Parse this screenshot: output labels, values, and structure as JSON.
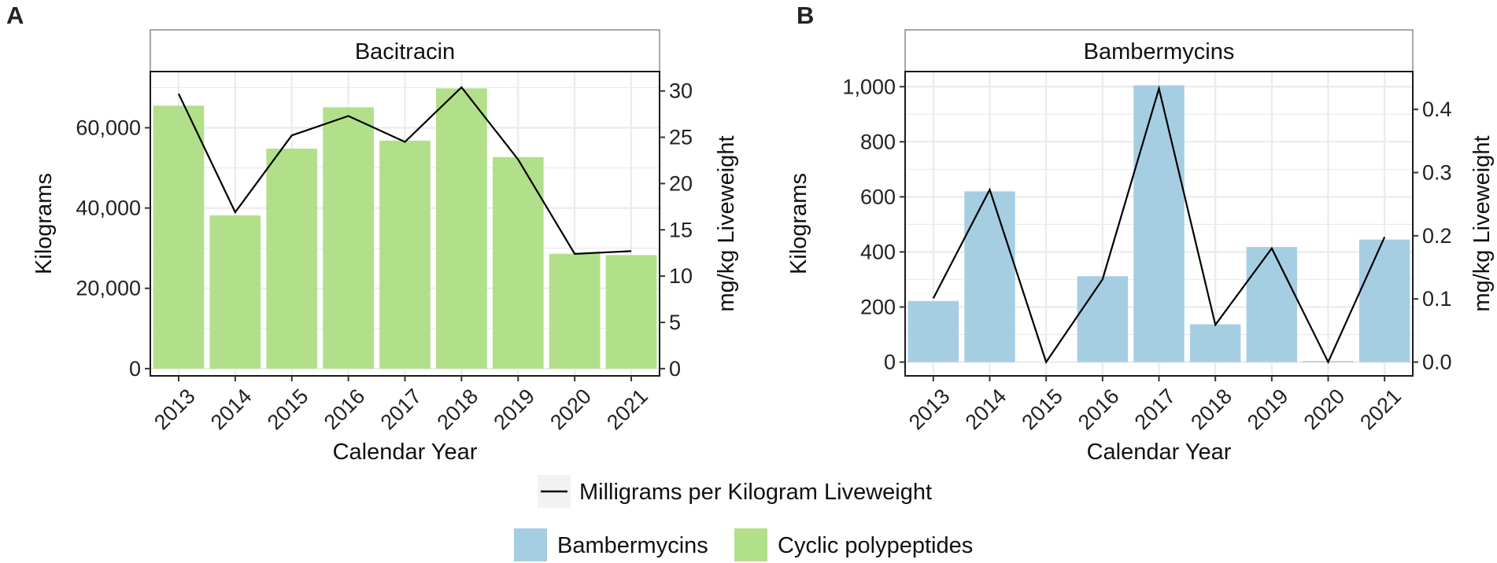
{
  "colors": {
    "cyclic": "#b2df8a",
    "bamber": "#a6cee3",
    "line": "#000000",
    "grid": "#ebebeb",
    "strip_bg": "#ffffff"
  },
  "legend": {
    "line_label": "Milligrams per Kilogram Liveweight",
    "fill_items": [
      "Bambermycins",
      "Cyclic polypeptides"
    ]
  },
  "chart_data": [
    {
      "panel": "A",
      "type": "bar",
      "title": "Bacitracin",
      "xlabel": "Calendar Year",
      "ylabel": "Kilograms",
      "ylabel_right": "mg/kg Liveweight",
      "categories": [
        "2013",
        "2014",
        "2015",
        "2016",
        "2017",
        "2018",
        "2019",
        "2020",
        "2021"
      ],
      "series": [
        {
          "name": "Cyclic polypeptides",
          "kind": "bar",
          "axis": "left",
          "values": [
            65500,
            38200,
            54800,
            65100,
            56800,
            69800,
            52700,
            28600,
            28300
          ]
        },
        {
          "name": "Milligrams per Kilogram Liveweight",
          "kind": "line",
          "axis": "right",
          "values": [
            29.7,
            16.9,
            25.2,
            27.3,
            24.5,
            30.4,
            22.6,
            12.4,
            12.7
          ]
        }
      ],
      "ylim": [
        -1800,
        74000
      ],
      "ylim_right": [
        -0.78,
        32.1
      ],
      "yticks": [
        0,
        20000,
        40000,
        60000
      ],
      "ytick_labels": [
        "0",
        "20,000",
        "40,000",
        "60,000"
      ],
      "yticks_right": [
        0,
        5,
        10,
        15,
        20,
        25,
        30
      ],
      "ytick_labels_right": [
        "0",
        "5",
        "10",
        "15",
        "20",
        "25",
        "30"
      ],
      "grid": true
    },
    {
      "panel": "B",
      "type": "bar",
      "title": "Bambermycins",
      "xlabel": "Calendar Year",
      "ylabel": "Kilograms",
      "ylabel_right": "mg/kg Liveweight",
      "categories": [
        "2013",
        "2014",
        "2015",
        "2016",
        "2017",
        "2018",
        "2019",
        "2020",
        "2021"
      ],
      "series": [
        {
          "name": "Bambermycins",
          "kind": "bar",
          "axis": "left",
          "values": [
            222,
            620,
            0,
            312,
            1005,
            137,
            418,
            4,
            445
          ]
        },
        {
          "name": "Milligrams per Kilogram Liveweight",
          "kind": "line",
          "axis": "right",
          "values": [
            0.101,
            0.273,
            0.0,
            0.131,
            0.433,
            0.059,
            0.18,
            0.0,
            0.198
          ]
        }
      ],
      "ylim": [
        -50,
        1055
      ],
      "ylim_right": [
        -0.0218,
        0.4599
      ],
      "yticks": [
        0,
        200,
        400,
        600,
        800,
        1000
      ],
      "ytick_labels": [
        "0",
        "200",
        "400",
        "600",
        "800",
        "1,000"
      ],
      "yticks_right": [
        0,
        0.1,
        0.2,
        0.3,
        0.4
      ],
      "ytick_labels_right": [
        "0.0",
        "0.1",
        "0.2",
        "0.3",
        "0.4"
      ],
      "grid": true
    }
  ]
}
